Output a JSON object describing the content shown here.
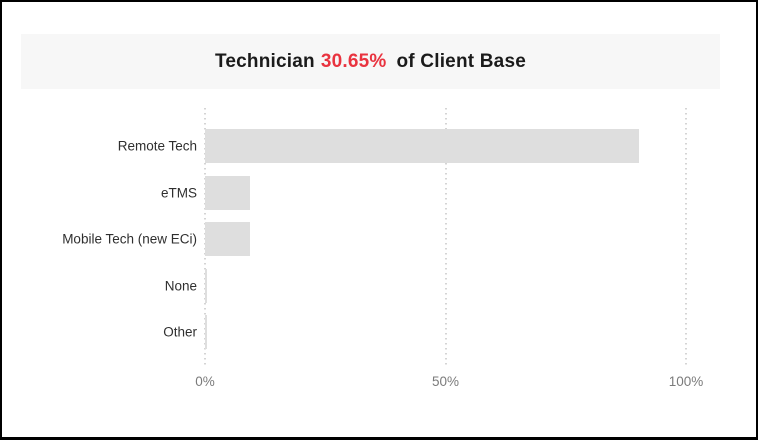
{
  "title": {
    "prefix": "Technician",
    "value": "30.65%",
    "suffix": "of Client Base"
  },
  "colors": {
    "accent_red": "#e9333f",
    "bar_fill": "#dedede",
    "title_bg": "#f7f7f7",
    "frame_border": "#000000",
    "axis_text": "#7b7b7b",
    "category_text": "#2f2f2f"
  },
  "chart_data": {
    "type": "bar",
    "orientation": "horizontal",
    "title": "Technician 30.65% of Client Base",
    "categories": [
      "Remote Tech",
      "eTMS",
      "Mobile Tech (new ECi)",
      "None",
      "Other"
    ],
    "values": [
      90.2,
      9.4,
      9.4,
      0.5,
      0.5
    ],
    "xlabel": "",
    "ylabel": "",
    "xlim": [
      0,
      100
    ],
    "x_ticks": [
      {
        "label": "0%",
        "value": 0
      },
      {
        "label": "50%",
        "value": 50
      },
      {
        "label": "100%",
        "value": 100
      }
    ],
    "grid": "dotted-vertical",
    "legend": "none"
  }
}
